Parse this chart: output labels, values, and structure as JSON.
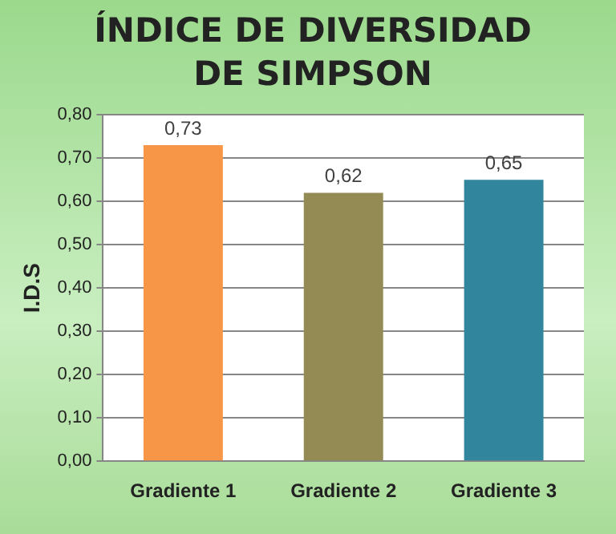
{
  "chart_data": {
    "type": "bar",
    "title": "ÍNDICE DE DIVERSIDAD DE SIMPSON",
    "ylabel": "I.D.S",
    "categories": [
      "Gradiente 1",
      "Gradiente 2",
      "Gradiente 3"
    ],
    "values": [
      0.73,
      0.62,
      0.65
    ],
    "colors": [
      "#f79646",
      "#948a54",
      "#31859c"
    ],
    "ylim": [
      0,
      0.8
    ],
    "yticks": [
      {
        "value": 0,
        "label": "0,00"
      },
      {
        "value": 0.1,
        "label": "0,10"
      },
      {
        "value": 0.2,
        "label": "0,20"
      },
      {
        "value": 0.3,
        "label": "0,30"
      },
      {
        "value": 0.4,
        "label": "0,40"
      },
      {
        "value": 0.5,
        "label": "0,50"
      },
      {
        "value": 0.6,
        "label": "0,60"
      },
      {
        "value": 0.7,
        "label": "0,70"
      },
      {
        "value": 0.8,
        "label": "0,80"
      }
    ],
    "value_labels": [
      "0,73",
      "0,62",
      "0,65"
    ],
    "grid": "y",
    "legend": false
  }
}
